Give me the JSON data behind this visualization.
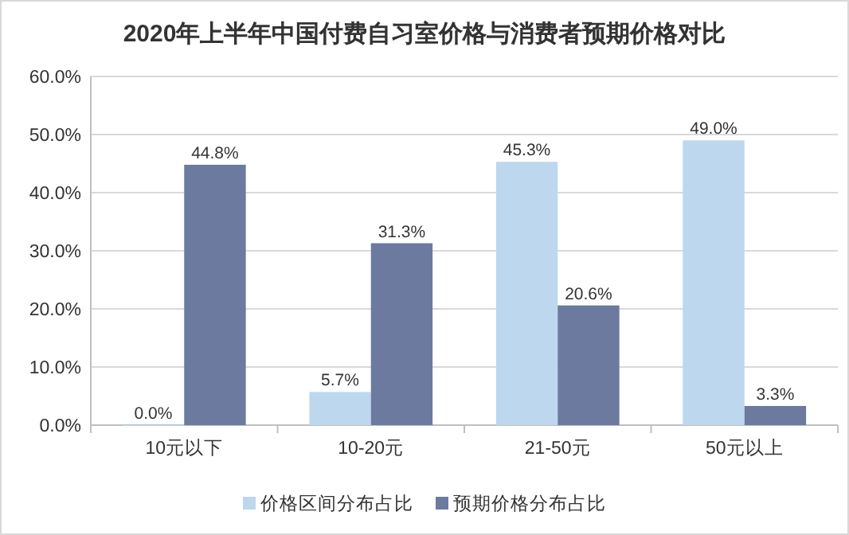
{
  "chart_data": {
    "type": "bar",
    "title": "2020年上半年中国付费自习室价格与消费者预期价格对比",
    "categories": [
      "10元以下",
      "10-20元",
      "21-50元",
      "50元以上"
    ],
    "series": [
      {
        "name": "价格区间分布占比",
        "color": "#bdd7ee",
        "values": [
          0.0,
          5.7,
          45.3,
          49.0
        ],
        "value_labels": [
          "0.0%",
          "5.7%",
          "45.3%",
          "49.0%"
        ]
      },
      {
        "name": "预期价格分布占比",
        "color": "#6b7a9e",
        "values": [
          44.8,
          31.3,
          20.6,
          3.3
        ],
        "value_labels": [
          "44.8%",
          "31.3%",
          "20.6%",
          "3.3%"
        ]
      }
    ],
    "ylim": [
      0,
      60
    ],
    "yticks": [
      {
        "value": 0,
        "label": "0.0%"
      },
      {
        "value": 10,
        "label": "10.0%"
      },
      {
        "value": 20,
        "label": "20.0%"
      },
      {
        "value": 30,
        "label": "30.0%"
      },
      {
        "value": 40,
        "label": "40.0%"
      },
      {
        "value": 50,
        "label": "50.0%"
      },
      {
        "value": 60,
        "label": "60.0%"
      }
    ],
    "grid": "y",
    "legend": "bottom"
  }
}
